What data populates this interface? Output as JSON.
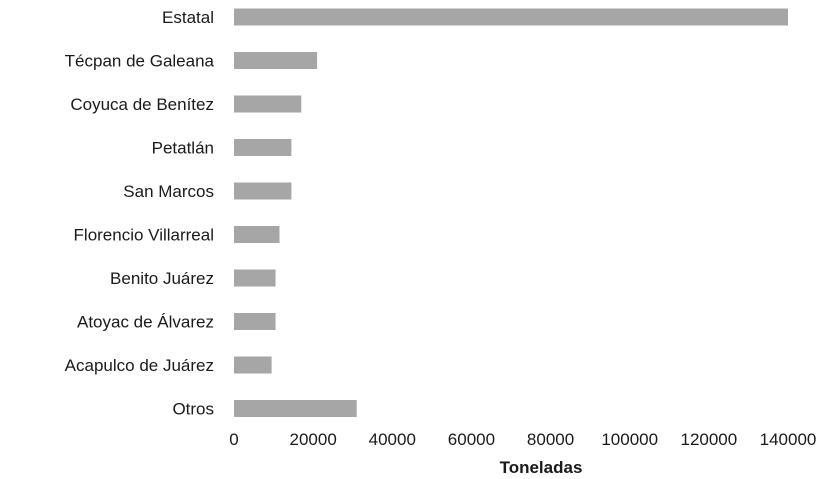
{
  "chart_data": {
    "type": "bar",
    "orientation": "horizontal",
    "categories": [
      "Estatal",
      "Técpan de Galeana",
      "Coyuca de Benítez",
      "Petatlán",
      "San Marcos",
      "Florencio Villarreal",
      "Benito Juárez",
      "Atoyac de Álvarez",
      "Acapulco de Juárez",
      "Otros"
    ],
    "values": [
      140000,
      21000,
      17000,
      14500,
      14500,
      11500,
      10500,
      10500,
      9500,
      31000
    ],
    "xlabel": "Toneladas",
    "ylabel": "",
    "xlim": [
      0,
      140000
    ],
    "xticks": [
      "0",
      "20000",
      "40000",
      "60000",
      "80000",
      "100000",
      "120000",
      "140000"
    ],
    "grid": false,
    "legend": "none",
    "bar_color": "#a6a6a6"
  }
}
